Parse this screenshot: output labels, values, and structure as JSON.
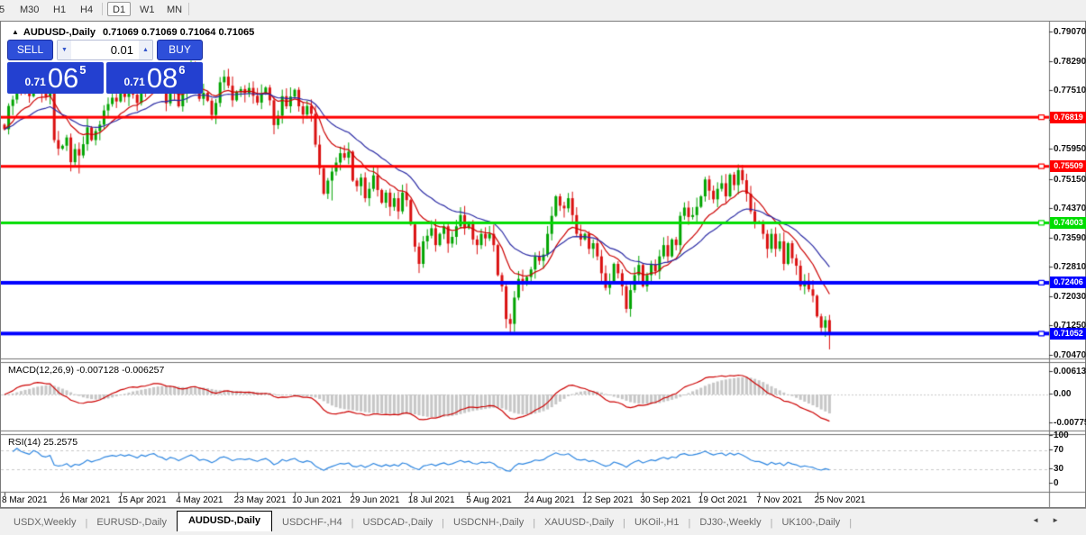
{
  "toolbar": {
    "partial_label": "5",
    "timeframes": [
      "M30",
      "H1",
      "H4",
      "D1",
      "W1",
      "MN"
    ],
    "active": "D1"
  },
  "icons": {
    "collapse": "▲",
    "spinner_down": "▼",
    "spinner_up": "▲",
    "tab_scroll_left": "◄",
    "tab_scroll_right": "►"
  },
  "chart_header": {
    "symbol_title": "AUDUSD-,Daily",
    "ohlc": "0.71069 0.71069 0.71064 0.71065"
  },
  "trade_panel": {
    "sell_label": "SELL",
    "buy_label": "BUY",
    "volume": "0.01",
    "bid": {
      "base": "0.71",
      "big": "06",
      "sup": "5"
    },
    "ask": {
      "base": "0.71",
      "big": "08",
      "sup": "6"
    }
  },
  "chart_data": {
    "type": "candlestick",
    "symbol": "AUDUSD",
    "timeframe": "Daily",
    "title": "AUDUSD-,Daily",
    "ylim": [
      0.7046,
      0.792
    ],
    "y_ticks": [
      "0.79070",
      "0.78290",
      "0.77510",
      "0.76730",
      "0.75950",
      "0.75150",
      "0.74370",
      "0.73590",
      "0.72810",
      "0.72030",
      "0.71250",
      "0.70470"
    ],
    "x_labels": [
      "8 Mar 2021",
      "26 Mar 2021",
      "15 Apr 2021",
      "4 May 2021",
      "23 May 2021",
      "10 Jun 2021",
      "29 Jun 2021",
      "18 Jul 2021",
      "5 Aug 2021",
      "24 Aug 2021",
      "12 Sep 2021",
      "30 Sep 2021",
      "19 Oct 2021",
      "7 Nov 2021",
      "25 Nov 2021"
    ],
    "closes": [
      0.765,
      0.7712,
      0.7729,
      0.7784,
      0.7761,
      0.7749,
      0.7738,
      0.7797,
      0.7781,
      0.7746,
      0.7737,
      0.7757,
      0.7621,
      0.7598,
      0.7606,
      0.7628,
      0.7562,
      0.7597,
      0.758,
      0.761,
      0.7655,
      0.7621,
      0.7645,
      0.7662,
      0.77,
      0.7717,
      0.7734,
      0.7724,
      0.7755,
      0.7736,
      0.776,
      0.7742,
      0.772,
      0.777,
      0.7753,
      0.7789,
      0.7805,
      0.777,
      0.7756,
      0.7719,
      0.7762,
      0.7746,
      0.7711,
      0.7745,
      0.778,
      0.7813,
      0.7785,
      0.7731,
      0.7747,
      0.7726,
      0.7688,
      0.772,
      0.7775,
      0.779,
      0.7766,
      0.7727,
      0.775,
      0.7757,
      0.7746,
      0.776,
      0.7739,
      0.7721,
      0.7745,
      0.7761,
      0.7727,
      0.7661,
      0.7686,
      0.7738,
      0.7711,
      0.7737,
      0.7755,
      0.7711,
      0.7689,
      0.7712,
      0.7691,
      0.7609,
      0.7546,
      0.7478,
      0.7513,
      0.7537,
      0.7561,
      0.7586,
      0.7574,
      0.759,
      0.7513,
      0.7498,
      0.7521,
      0.7466,
      0.7491,
      0.7527,
      0.7488,
      0.7454,
      0.7481,
      0.7443,
      0.7466,
      0.7431,
      0.7481,
      0.7461,
      0.7396,
      0.7337,
      0.7291,
      0.7351,
      0.7366,
      0.7386,
      0.7341,
      0.7371,
      0.7391,
      0.7345,
      0.7363,
      0.7391,
      0.7421,
      0.7386,
      0.7401,
      0.7356,
      0.7341,
      0.7371,
      0.7359,
      0.7371,
      0.7341,
      0.7261,
      0.7231,
      0.7144,
      0.7131,
      0.7201,
      0.7251,
      0.7236,
      0.7256,
      0.7276,
      0.7311,
      0.7299,
      0.7316,
      0.7371,
      0.7419,
      0.7471,
      0.7446,
      0.7439,
      0.7466,
      0.7421,
      0.7371,
      0.7356,
      0.7371,
      0.7331,
      0.7346,
      0.7311,
      0.7266,
      0.7227,
      0.7241,
      0.7291,
      0.7266,
      0.7231,
      0.7171,
      0.7221,
      0.7261,
      0.7288,
      0.7231,
      0.7261,
      0.7289,
      0.7271,
      0.7311,
      0.7341,
      0.7311,
      0.7356,
      0.7341,
      0.7419,
      0.7441,
      0.7416,
      0.7421,
      0.7443,
      0.7471,
      0.7516,
      0.7486,
      0.7463,
      0.7491,
      0.7506,
      0.7471,
      0.7529,
      0.7501,
      0.7541,
      0.7514,
      0.7478,
      0.7431,
      0.7403,
      0.7401,
      0.7371,
      0.7331,
      0.7371,
      0.7331,
      0.7351,
      0.7291,
      0.7346,
      0.7306,
      0.7286,
      0.7231,
      0.7246,
      0.7223,
      0.7206,
      0.7151,
      0.7121,
      0.7141,
      0.7106
    ],
    "wick_overrides": {
      "highs": {
        "45": 0.7833,
        "177": 0.7556
      },
      "lows": {
        "18": 0.7532,
        "79": 0.746,
        "122": 0.7106,
        "199": 0.7063
      }
    },
    "colors": {
      "up": "#00A400",
      "down": "#DA1010",
      "ma_fast": "#CC0000",
      "ma_slow": "#2A2AA4",
      "macd_hist": "#C6C6C6",
      "macd_line": "#CC0000",
      "rsi_line": "#2E86E0",
      "rsi_levels": "#C8C8C8",
      "border": "#707070"
    },
    "moving_averages": [
      {
        "name": "fast-ema",
        "period": 12
      },
      {
        "name": "slow-ema",
        "period": 26
      }
    ],
    "hlines": [
      {
        "price": 0.76819,
        "label": "0.76819",
        "color": "#FF0000",
        "width": 3
      },
      {
        "price": 0.75509,
        "label": "0.75509",
        "color": "#FF0000",
        "width": 3
      },
      {
        "price": 0.74003,
        "label": "0.74003",
        "color": "#00DD00",
        "width": 3
      },
      {
        "price": 0.72406,
        "label": "0.72406",
        "color": "#0000FF",
        "width": 4
      },
      {
        "price": 0.71052,
        "label": "0.71052",
        "color": "#0000FF",
        "width": 4
      }
    ],
    "macd": {
      "label": "MACD(12,26,9) -0.007128 -0.006257",
      "params": [
        12,
        26,
        9
      ],
      "main_value": -0.007128,
      "signal_value": -0.006257,
      "axis": [
        {
          "value": 0.006132,
          "label": "0.006132"
        },
        {
          "value": 0.0,
          "label": "0.00"
        },
        {
          "value": -0.00775,
          "label": "-0.00775"
        }
      ]
    },
    "rsi": {
      "label": "RSI(14) 25.2575",
      "period": 14,
      "current": 25.2575,
      "levels": [
        70,
        30
      ],
      "axis": [
        {
          "value": 100,
          "label": "100"
        },
        {
          "value": 70,
          "label": "70"
        },
        {
          "value": 30,
          "label": "30"
        },
        {
          "value": 0,
          "label": "0"
        }
      ]
    }
  },
  "tab_bar": {
    "active_index": 2,
    "items": [
      "USDX,Weekly",
      "EURUSD-,Daily",
      "AUDUSD-,Daily",
      "USDCHF-,H4",
      "USDCAD-,Daily",
      "USDCNH-,Daily",
      "XAUUSD-,Daily",
      "UKOil-,H1",
      "DJ30-,Weekly",
      "UK100-,Daily"
    ]
  }
}
